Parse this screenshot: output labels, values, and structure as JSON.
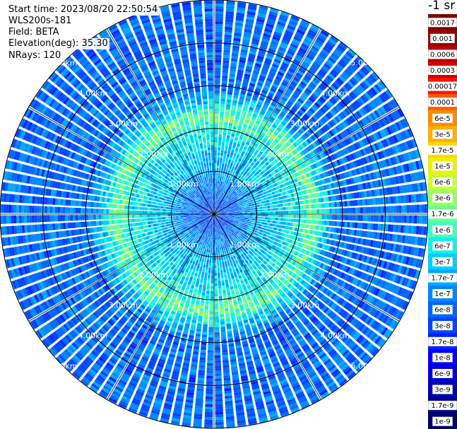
{
  "header": {
    "start_time": "Start time: 2023/08/20 22:50:54",
    "device": "WLS200s-181",
    "field": "Field: BETA",
    "elevation": "Elevation(deg): 35.30",
    "nrays": "NRays: 120"
  },
  "colorbar": {
    "unit_label": "-1 sr",
    "labels": [
      "0.0017",
      "0.001",
      "0.0006",
      "0.0003",
      "0.00017",
      "0.0001",
      "6e-5",
      "3e-5",
      "1.7e-5",
      "1e-5",
      "6e-6",
      "3e-6",
      "1.7e-6",
      "1e-6",
      "6e-7",
      "3e-7",
      "1.7e-7",
      "1e-7",
      "6e-8",
      "3e-8",
      "1.7e-8",
      "1e-8",
      "6e-9",
      "3e-9",
      "1.7e-9",
      "1e-9"
    ],
    "colors": [
      "#7f0000",
      "#9a0000",
      "#b80000",
      "#d60000",
      "#ff1200",
      "#ff5a00",
      "#ff8c00",
      "#ffb000",
      "#ffd800",
      "#f0f000",
      "#c8ff2e",
      "#9aff5e",
      "#6aff8e",
      "#40ffbe",
      "#14f0e8",
      "#00d0ff",
      "#00aaff",
      "#0088ff",
      "#0066ff",
      "#0044ff",
      "#0022ff",
      "#0000ff",
      "#0000d8",
      "#0000b0",
      "#00008a",
      "#000066"
    ]
  },
  "chart_data": {
    "type": "heatmap",
    "projection": "polar-ppi",
    "n_rays": 120,
    "r_max_km": 5.0,
    "range_rings_km": [
      1.0,
      2.0,
      3.0,
      4.0,
      5.0
    ],
    "ring_labels": [
      "1.00km",
      "2.00km",
      "3.00km",
      "4.00km",
      "5.00km"
    ],
    "azimuth_spokes_deg": [
      0,
      30,
      60,
      90,
      120,
      150,
      180,
      210,
      240,
      270,
      300,
      330
    ],
    "value_scale": "log",
    "value_range": [
      1e-09,
      0.0017
    ],
    "profile": {
      "range_km": [
        0.0,
        0.2,
        0.5,
        1.0,
        1.5,
        2.0,
        2.3,
        2.6,
        3.0,
        4.0,
        5.0
      ],
      "beta_sr_inv": [
        6e-08,
        3e-08,
        6e-08,
        1.7e-07,
        3e-07,
        6e-07,
        1.7e-06,
        3e-07,
        6e-08,
        6e-08,
        6e-08
      ]
    }
  }
}
